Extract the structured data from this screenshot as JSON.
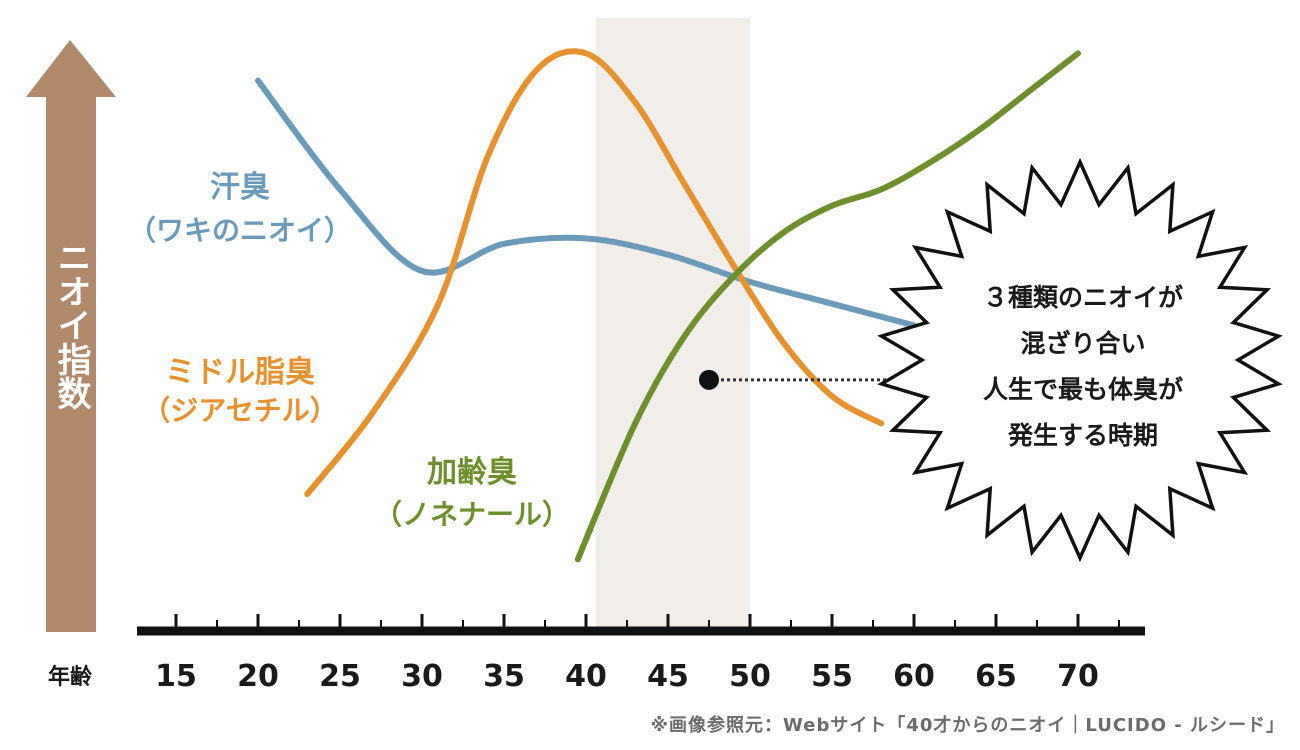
{
  "chart_data": {
    "type": "line",
    "x_axis": {
      "label": "年齢",
      "ticks": [
        15,
        20,
        25,
        30,
        35,
        40,
        45,
        50,
        55,
        60,
        65,
        70
      ],
      "xlim": [
        13,
        76
      ]
    },
    "y_axis": {
      "label": "ニオイ指数",
      "ylim": [
        0,
        100
      ]
    },
    "highlight_range": {
      "x": [
        40,
        50
      ]
    },
    "series": [
      {
        "name": "汗臭",
        "subtitle": "（ワキのニオイ）",
        "color": "#6b9bba",
        "points": [
          [
            20,
            94
          ],
          [
            25,
            74
          ],
          [
            30,
            59
          ],
          [
            35,
            64
          ],
          [
            40,
            65
          ],
          [
            45,
            62
          ],
          [
            50,
            57
          ],
          [
            55,
            53
          ],
          [
            60,
            49
          ]
        ]
      },
      {
        "name": "ミドル脂臭",
        "subtitle": "（ジアセチル）",
        "color": "#e8912f",
        "points": [
          [
            23,
            18
          ],
          [
            27,
            33
          ],
          [
            31,
            53
          ],
          [
            34,
            80
          ],
          [
            37,
            96
          ],
          [
            40,
            99
          ],
          [
            43,
            90
          ],
          [
            46,
            75
          ],
          [
            49,
            60
          ],
          [
            52,
            46
          ],
          [
            55,
            36
          ],
          [
            58,
            31
          ]
        ]
      },
      {
        "name": "加齢臭",
        "subtitle": "（ノネナール）",
        "color": "#6f8e2c",
        "points": [
          [
            39.5,
            6
          ],
          [
            43,
            31
          ],
          [
            46,
            47
          ],
          [
            49,
            58
          ],
          [
            52,
            66
          ],
          [
            55,
            71
          ],
          [
            58,
            74
          ],
          [
            61,
            79
          ],
          [
            64,
            85
          ],
          [
            67,
            92
          ],
          [
            70,
            99
          ]
        ]
      }
    ],
    "annotation": {
      "lines": [
        "３種類のニオイが",
        "混ざり合い",
        "人生で最も体臭が",
        "発生する時期"
      ],
      "point": [
        47.5,
        39
      ]
    },
    "source": "※画像参照元：Webサイト「40才からのニオイ｜LUCIDO - ルシード」"
  },
  "colors": {
    "arrow": "#b0896a",
    "highlight": "#f1ede8",
    "axis": "#111111",
    "callout_fill": "#ffffff",
    "callout_stroke": "#111111"
  }
}
